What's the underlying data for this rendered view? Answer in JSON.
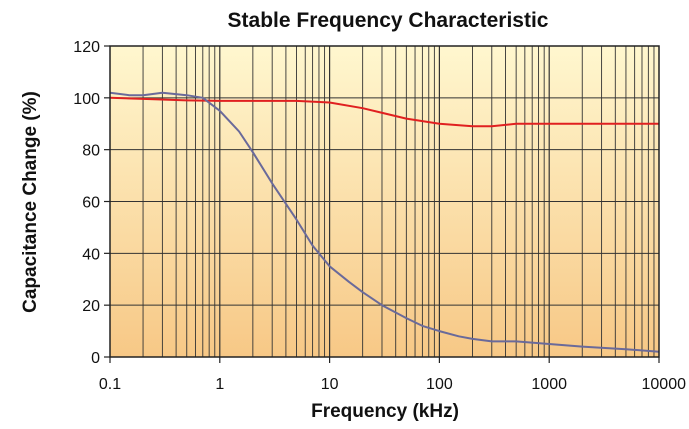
{
  "chart_data": {
    "type": "line",
    "title": "Stable Frequency Characteristic",
    "xlabel": "Frequency (kHz)",
    "ylabel": "Capacitance Change (%)",
    "x_scale": "log",
    "xlim": [
      0.1,
      10000
    ],
    "ylim": [
      0,
      120
    ],
    "x_ticks": [
      0.1,
      1,
      10,
      100,
      1000,
      10000
    ],
    "x_tick_labels": [
      "0.1",
      "1",
      "10",
      "100",
      "1000",
      "10000"
    ],
    "y_ticks": [
      0,
      20,
      40,
      60,
      80,
      100,
      120
    ],
    "y_tick_labels": [
      "0",
      "20",
      "40",
      "60",
      "80",
      "100",
      "120"
    ],
    "grid": true,
    "series": [
      {
        "color": "#e02020",
        "x": [
          0.1,
          0.2,
          0.5,
          1,
          2,
          5,
          10,
          20,
          50,
          100,
          200,
          300,
          500,
          1000,
          2000,
          5000,
          10000
        ],
        "y": [
          100,
          99.6,
          99,
          98.8,
          98.8,
          98.8,
          98.2,
          96,
          92,
          90,
          89,
          89,
          90,
          90,
          90,
          90,
          90
        ]
      },
      {
        "color": "#6a6a9a",
        "x": [
          0.1,
          0.15,
          0.2,
          0.3,
          0.5,
          0.7,
          1,
          1.5,
          2,
          3,
          5,
          7,
          10,
          15,
          20,
          30,
          50,
          70,
          100,
          150,
          200,
          300,
          500,
          1000,
          2000,
          5000,
          10000
        ],
        "y": [
          102,
          101,
          101,
          102,
          101,
          100,
          95,
          87,
          79,
          67,
          53,
          43,
          35,
          29,
          25,
          20,
          15,
          12,
          10,
          8,
          7,
          6,
          6,
          5,
          4,
          3,
          2
        ]
      }
    ]
  }
}
